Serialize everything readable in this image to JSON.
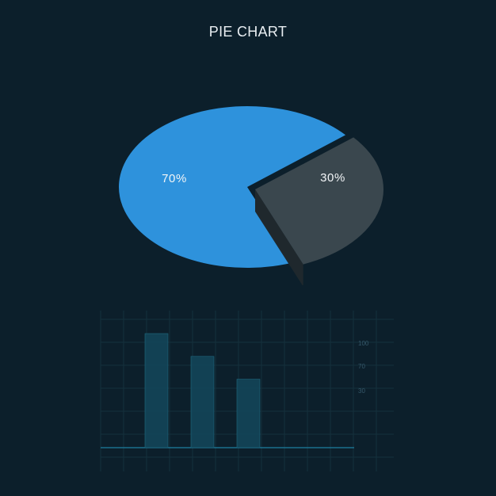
{
  "title": "PIE CHART",
  "colors": {
    "background": "#0c1f2b",
    "pie_primary_top": "#2e92dc",
    "pie_primary_side": "#21689f",
    "pie_secondary_top": "#3a474e",
    "pie_secondary_side": "#2a3439",
    "bar_fill": "#134559",
    "bar_edge": "#1f6a80",
    "grid": "#15303d",
    "baseline": "#1c7fa0"
  },
  "chart_data": [
    {
      "type": "pie",
      "title": "PIE CHART",
      "slices": [
        {
          "label": "70%",
          "value": 70
        },
        {
          "label": "30%",
          "value": 30
        }
      ]
    },
    {
      "type": "bar",
      "categories": [
        "",
        "",
        ""
      ],
      "values": [
        100,
        80,
        60
      ],
      "ylim": [
        0,
        100
      ],
      "ticks": [
        "100",
        "70",
        "30"
      ],
      "grid": true
    }
  ]
}
